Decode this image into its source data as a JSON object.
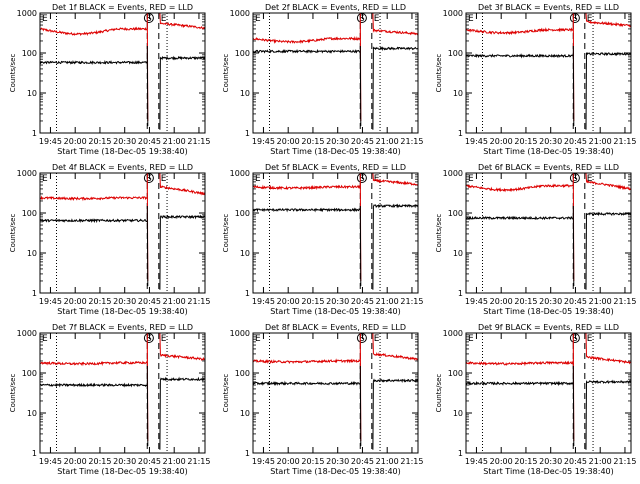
{
  "figure": {
    "colors": {
      "events": "#000000",
      "lld": "#dd0000",
      "axes": "#000000",
      "background": "#ffffff"
    }
  },
  "chart_data": [
    {
      "type": "line",
      "title": "Det 1f BLACK = Events, RED = LLD",
      "xlabel": "Start Time (18-Dec-05 19:38:40)",
      "ylabel": "Counts/sec",
      "x_ticks": [
        "19:45",
        "20:00",
        "20:15",
        "20:30",
        "20:45",
        "21:00",
        "21:15"
      ],
      "y_ticks": [
        "1",
        "10",
        "100",
        "1000"
      ],
      "yscale": "log",
      "ylim": [
        1,
        1000
      ],
      "xlim_minutes_after_start": [
        0,
        100
      ],
      "markers": {
        "dotted_lines_min": [
          10,
          77
        ],
        "dashed_lines_min": [
          65,
          72
        ],
        "annotations": [
          {
            "label": "S",
            "at_min": 66
          },
          {
            "label": "E",
            "at_min": 0
          },
          {
            "label": "E",
            "at_min": 72
          }
        ]
      },
      "series": [
        {
          "name": "LLD",
          "color": "#dd0000",
          "segments": [
            {
              "from": 0,
              "to": 65,
              "level": 400,
              "dip_to": 300
            },
            {
              "from": 73,
              "to": 100,
              "level": 550,
              "end": 420
            }
          ]
        },
        {
          "name": "Events",
          "color": "#000000",
          "segments": [
            {
              "from": 0,
              "to": 65,
              "level": 58
            },
            {
              "from": 73,
              "to": 100,
              "level": 75
            }
          ]
        }
      ]
    },
    {
      "type": "line",
      "title": "Det 2f BLACK = Events, RED = LLD",
      "xlabel": "Start Time (18-Dec-05 19:38:40)",
      "ylabel": "Counts/sec",
      "x_ticks": [
        "19:45",
        "20:00",
        "20:15",
        "20:30",
        "20:45",
        "21:00",
        "21:15"
      ],
      "y_ticks": [
        "1",
        "10",
        "100",
        "1000"
      ],
      "yscale": "log",
      "ylim": [
        1,
        1000
      ],
      "xlim_minutes_after_start": [
        0,
        100
      ],
      "markers": {
        "dotted_lines_min": [
          10,
          77
        ],
        "dashed_lines_min": [
          65,
          72
        ],
        "annotations": [
          {
            "label": "S",
            "at_min": 66
          },
          {
            "label": "E",
            "at_min": 0
          },
          {
            "label": "E",
            "at_min": 72
          }
        ]
      },
      "series": [
        {
          "name": "LLD",
          "color": "#dd0000",
          "segments": [
            {
              "from": 0,
              "to": 65,
              "level": 230,
              "dip_to": 190
            },
            {
              "from": 73,
              "to": 100,
              "level": 370,
              "end": 300
            }
          ]
        },
        {
          "name": "Events",
          "color": "#000000",
          "segments": [
            {
              "from": 0,
              "to": 65,
              "level": 110
            },
            {
              "from": 73,
              "to": 100,
              "level": 130
            }
          ]
        }
      ]
    },
    {
      "type": "line",
      "title": "Det 3f BLACK = Events, RED = LLD",
      "xlabel": "Start Time (18-Dec-05 19:38:40)",
      "ylabel": "Counts/sec",
      "x_ticks": [
        "19:45",
        "20:00",
        "20:15",
        "20:30",
        "20:45",
        "21:00",
        "21:15"
      ],
      "y_ticks": [
        "1",
        "10",
        "100",
        "1000"
      ],
      "yscale": "log",
      "ylim": [
        1,
        1000
      ],
      "xlim_minutes_after_start": [
        0,
        100
      ],
      "markers": {
        "dotted_lines_min": [
          10,
          77
        ],
        "dashed_lines_min": [
          65,
          72
        ],
        "annotations": [
          {
            "label": "S",
            "at_min": 66
          },
          {
            "label": "E",
            "at_min": 0
          },
          {
            "label": "E",
            "at_min": 72
          }
        ]
      },
      "series": [
        {
          "name": "LLD",
          "color": "#dd0000",
          "segments": [
            {
              "from": 0,
              "to": 65,
              "level": 380,
              "dip_to": 320
            },
            {
              "from": 73,
              "to": 100,
              "level": 600,
              "end": 480
            }
          ]
        },
        {
          "name": "Events",
          "color": "#000000",
          "segments": [
            {
              "from": 0,
              "to": 65,
              "level": 85
            },
            {
              "from": 73,
              "to": 100,
              "level": 95
            }
          ]
        }
      ]
    },
    {
      "type": "line",
      "title": "Det 4f BLACK = Events, RED = LLD",
      "xlabel": "Start Time (18-Dec-05 19:38:40)",
      "ylabel": "Counts/sec",
      "x_ticks": [
        "19:45",
        "20:00",
        "20:15",
        "20:30",
        "20:45",
        "21:00",
        "21:15"
      ],
      "y_ticks": [
        "1",
        "10",
        "100",
        "1000"
      ],
      "yscale": "log",
      "ylim": [
        1,
        1000
      ],
      "xlim_minutes_after_start": [
        0,
        100
      ],
      "markers": {
        "dotted_lines_min": [
          10,
          77
        ],
        "dashed_lines_min": [
          65,
          72
        ],
        "annotations": [
          {
            "label": "S",
            "at_min": 66
          },
          {
            "label": "E",
            "at_min": 0
          },
          {
            "label": "E",
            "at_min": 72
          }
        ]
      },
      "series": [
        {
          "name": "LLD",
          "color": "#dd0000",
          "segments": [
            {
              "from": 0,
              "to": 65,
              "level": 240,
              "dip_to": 230
            },
            {
              "from": 73,
              "to": 100,
              "level": 450,
              "end": 300
            }
          ]
        },
        {
          "name": "Events",
          "color": "#000000",
          "segments": [
            {
              "from": 0,
              "to": 65,
              "level": 65
            },
            {
              "from": 73,
              "to": 100,
              "level": 80
            }
          ]
        }
      ]
    },
    {
      "type": "line",
      "title": "Det 5f BLACK = Events, RED = LLD",
      "xlabel": "Start Time (18-Dec-05 19:38:40)",
      "ylabel": "Counts/sec",
      "x_ticks": [
        "19:45",
        "20:00",
        "20:15",
        "20:30",
        "20:45",
        "21:00",
        "21:15"
      ],
      "y_ticks": [
        "1",
        "10",
        "100",
        "1000"
      ],
      "yscale": "log",
      "ylim": [
        1,
        1000
      ],
      "xlim_minutes_after_start": [
        0,
        100
      ],
      "markers": {
        "dotted_lines_min": [
          10,
          77
        ],
        "dashed_lines_min": [
          65,
          72
        ],
        "annotations": [
          {
            "label": "S",
            "at_min": 66
          },
          {
            "label": "E",
            "at_min": 0
          },
          {
            "label": "E",
            "at_min": 72
          }
        ]
      },
      "series": [
        {
          "name": "LLD",
          "color": "#dd0000",
          "segments": [
            {
              "from": 0,
              "to": 65,
              "level": 450,
              "dip_to": 420
            },
            {
              "from": 73,
              "to": 100,
              "level": 650,
              "end": 520
            }
          ]
        },
        {
          "name": "Events",
          "color": "#000000",
          "segments": [
            {
              "from": 0,
              "to": 65,
              "level": 120
            },
            {
              "from": 73,
              "to": 100,
              "level": 150
            }
          ]
        }
      ]
    },
    {
      "type": "line",
      "title": "Det 6f BLACK = Events, RED = LLD",
      "xlabel": "Start Time (18-Dec-05 19:38:40)",
      "ylabel": "Counts/sec",
      "x_ticks": [
        "19:45",
        "20:00",
        "20:15",
        "20:30",
        "20:45",
        "21:00",
        "21:15"
      ],
      "y_ticks": [
        "1",
        "10",
        "100",
        "1000"
      ],
      "yscale": "log",
      "ylim": [
        1,
        1000
      ],
      "xlim_minutes_after_start": [
        0,
        100
      ],
      "markers": {
        "dotted_lines_min": [
          10,
          77
        ],
        "dashed_lines_min": [
          65,
          72
        ],
        "annotations": [
          {
            "label": "S",
            "at_min": 66
          },
          {
            "label": "E",
            "at_min": 0
          },
          {
            "label": "E",
            "at_min": 72
          }
        ]
      },
      "series": [
        {
          "name": "LLD",
          "color": "#dd0000",
          "segments": [
            {
              "from": 0,
              "to": 65,
              "level": 480,
              "dip_to": 380
            },
            {
              "from": 73,
              "to": 100,
              "level": 600,
              "end": 400
            }
          ]
        },
        {
          "name": "Events",
          "color": "#000000",
          "segments": [
            {
              "from": 0,
              "to": 65,
              "level": 75
            },
            {
              "from": 73,
              "to": 100,
              "level": 95
            }
          ]
        }
      ]
    },
    {
      "type": "line",
      "title": "Det 7f BLACK = Events, RED = LLD",
      "xlabel": "Start Time (18-Dec-05 19:38:40)",
      "ylabel": "Counts/sec",
      "x_ticks": [
        "19:45",
        "20:00",
        "20:15",
        "20:30",
        "20:45",
        "21:00",
        "21:15"
      ],
      "y_ticks": [
        "1",
        "10",
        "100",
        "1000"
      ],
      "yscale": "log",
      "ylim": [
        1,
        1000
      ],
      "xlim_minutes_after_start": [
        0,
        100
      ],
      "markers": {
        "dotted_lines_min": [
          10,
          77
        ],
        "dashed_lines_min": [
          65,
          72
        ],
        "annotations": [
          {
            "label": "S",
            "at_min": 66
          },
          {
            "label": "E",
            "at_min": 0
          },
          {
            "label": "E",
            "at_min": 72
          }
        ]
      },
      "series": [
        {
          "name": "LLD",
          "color": "#dd0000",
          "segments": [
            {
              "from": 0,
              "to": 65,
              "level": 180,
              "dip_to": 170
            },
            {
              "from": 73,
              "to": 100,
              "level": 280,
              "end": 220
            }
          ]
        },
        {
          "name": "Events",
          "color": "#000000",
          "segments": [
            {
              "from": 0,
              "to": 65,
              "level": 50
            },
            {
              "from": 73,
              "to": 100,
              "level": 70
            }
          ]
        }
      ]
    },
    {
      "type": "line",
      "title": "Det 8f BLACK = Events, RED = LLD",
      "xlabel": "Start Time (18-Dec-05 19:38:40)",
      "ylabel": "Counts/sec",
      "x_ticks": [
        "19:45",
        "20:00",
        "20:15",
        "20:30",
        "20:45",
        "21:00",
        "21:15"
      ],
      "y_ticks": [
        "1",
        "10",
        "100",
        "1000"
      ],
      "yscale": "log",
      "ylim": [
        1,
        1000
      ],
      "xlim_minutes_after_start": [
        0,
        100
      ],
      "markers": {
        "dotted_lines_min": [
          10,
          77
        ],
        "dashed_lines_min": [
          65,
          72
        ],
        "annotations": [
          {
            "label": "S",
            "at_min": 66
          },
          {
            "label": "E",
            "at_min": 0
          },
          {
            "label": "E",
            "at_min": 72
          }
        ]
      },
      "series": [
        {
          "name": "LLD",
          "color": "#dd0000",
          "segments": [
            {
              "from": 0,
              "to": 65,
              "level": 200,
              "dip_to": 190
            },
            {
              "from": 73,
              "to": 100,
              "level": 300,
              "end": 220
            }
          ]
        },
        {
          "name": "Events",
          "color": "#000000",
          "segments": [
            {
              "from": 0,
              "to": 65,
              "level": 55
            },
            {
              "from": 73,
              "to": 100,
              "level": 65
            }
          ]
        }
      ]
    },
    {
      "type": "line",
      "title": "Det 9f BLACK = Events, RED = LLD",
      "xlabel": "Start Time (18-Dec-05 19:38:40)",
      "ylabel": "Counts/sec",
      "x_ticks": [
        "19:45",
        "20:00",
        "20:15",
        "20:30",
        "20:45",
        "21:00",
        "21:15"
      ],
      "y_ticks": [
        "1",
        "10",
        "100",
        "1000"
      ],
      "yscale": "log",
      "ylim": [
        1,
        1000
      ],
      "xlim_minutes_after_start": [
        0,
        100
      ],
      "markers": {
        "dotted_lines_min": [
          10,
          77
        ],
        "dashed_lines_min": [
          65,
          72
        ],
        "annotations": [
          {
            "label": "S",
            "at_min": 66
          },
          {
            "label": "E",
            "at_min": 0
          },
          {
            "label": "E",
            "at_min": 72
          }
        ]
      },
      "series": [
        {
          "name": "LLD",
          "color": "#dd0000",
          "segments": [
            {
              "from": 0,
              "to": 65,
              "level": 180,
              "dip_to": 170
            },
            {
              "from": 73,
              "to": 100,
              "level": 250,
              "end": 180
            }
          ]
        },
        {
          "name": "Events",
          "color": "#000000",
          "segments": [
            {
              "from": 0,
              "to": 65,
              "level": 55
            },
            {
              "from": 73,
              "to": 100,
              "level": 60
            }
          ]
        }
      ]
    }
  ]
}
